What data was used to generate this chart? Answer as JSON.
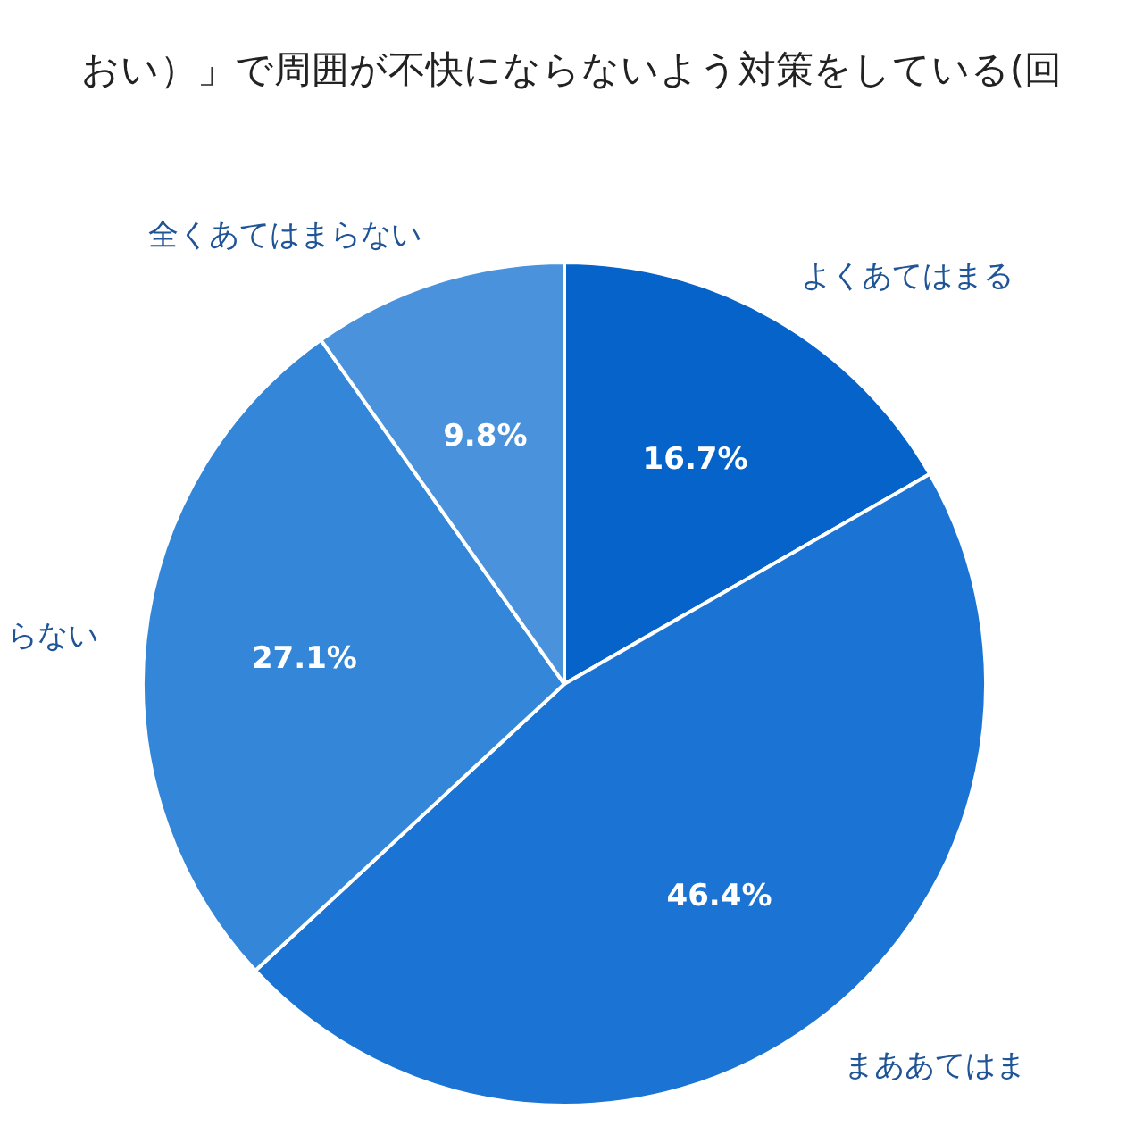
{
  "chart_data": {
    "type": "pie",
    "title": "おい）」で周囲が不快にならないよう対策をしている(回",
    "categories": [
      "よくあてはまる",
      "まああてはま",
      "らない",
      "全くあてはまらない"
    ],
    "values": [
      16.7,
      46.4,
      27.1,
      9.8
    ],
    "colors": [
      "#0563c9",
      "#1b74d3",
      "#3486d8",
      "#4a93dc"
    ],
    "value_labels": [
      "16.7%",
      "46.4%",
      "27.1%",
      "9.8%"
    ]
  }
}
